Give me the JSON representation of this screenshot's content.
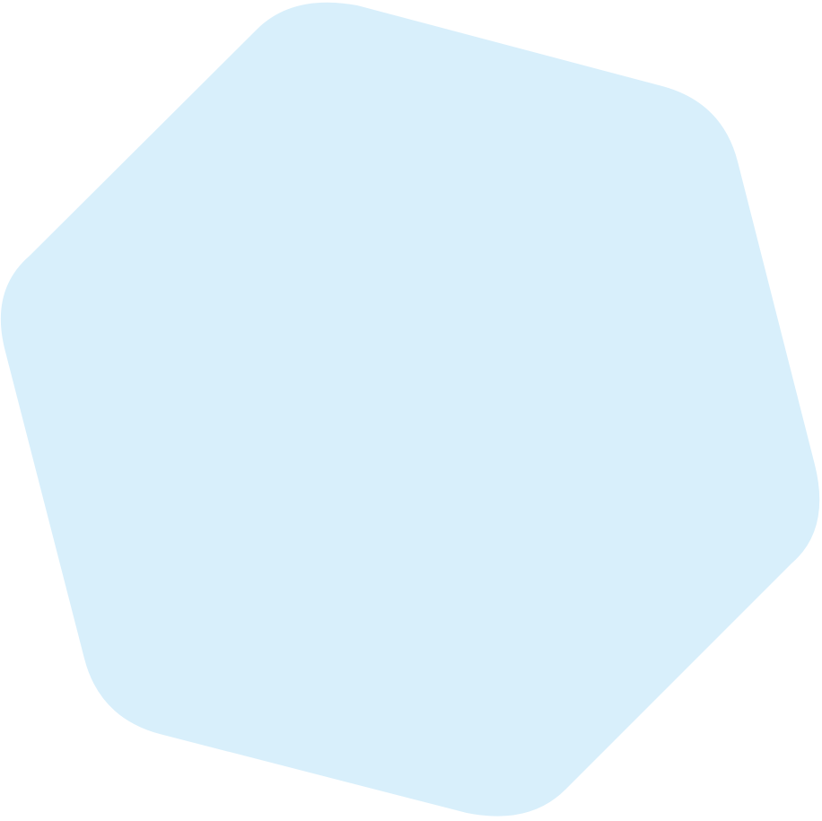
{
  "shape": {
    "kind": "rounded-hexagon",
    "fill_color": "#D8EFFB",
    "background_color": "#FFFFFF"
  }
}
